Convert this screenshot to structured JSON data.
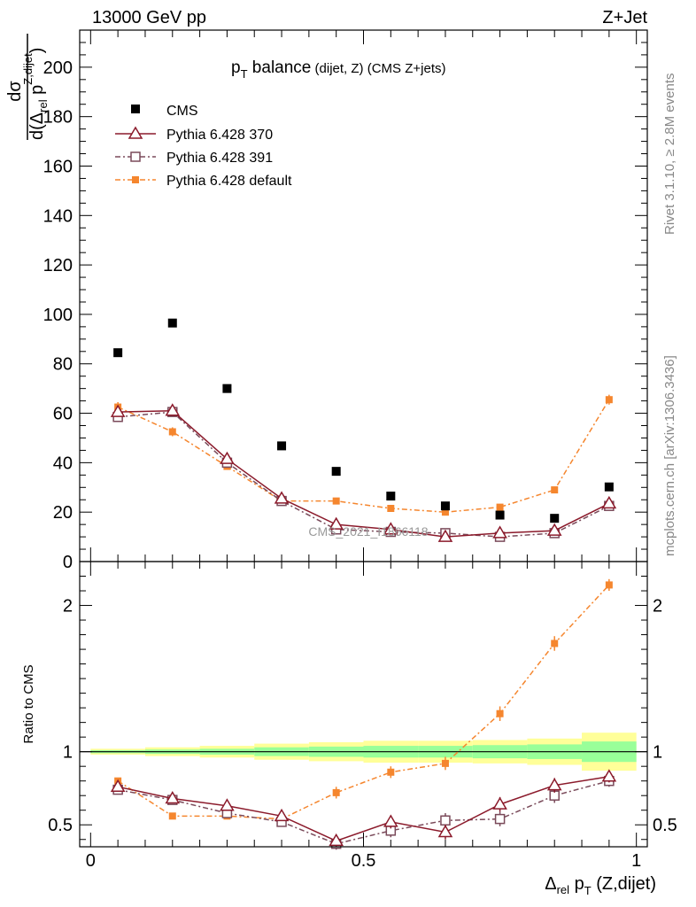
{
  "header": {
    "left": "13000 GeV pp",
    "right": "Z+Jet"
  },
  "side": {
    "rivet": "Rivet 3.1.10, ≥ 2.8M events",
    "mcplots": "mcplots.cern.ch [arXiv:1306.3436]"
  },
  "watermark": "CMS_2021_I1866118",
  "main_plot": {
    "title_main": "p",
    "title_sub": "T",
    "title_word": " balance",
    "title_small": " (dijet, Z)",
    "title_tail": " (CMS Z+jets)",
    "ylabel_num": "dσ",
    "ylabel_den_pre": "d(Δ",
    "ylabel_den_sub": "rel",
    "ylabel_den_p": " p",
    "ylabel_den_sup": "Z,dijet",
    "ylabel_den_close": ")"
  },
  "ratio_plot": {
    "ylabel": "Ratio to CMS"
  },
  "xaxis": {
    "delta": "Δ",
    "rel": "rel",
    "p": " p",
    "T": "T",
    "tail": " (Z,dijet)"
  },
  "legend": [
    {
      "label": "CMS"
    },
    {
      "label": "Pythia 6.428 370"
    },
    {
      "label": "Pythia 6.428 391"
    },
    {
      "label": "Pythia 6.428 default"
    }
  ],
  "colors": {
    "cms": "#000000",
    "p370": "#8b1a2b",
    "p391": "#7a4a5a",
    "pdef": "#f5862e",
    "band_inner": "#99ff99",
    "band_outer": "#ffff99"
  },
  "chart_data": [
    {
      "type": "scatter",
      "xlim": [
        -0.02,
        1.02
      ],
      "ylim": [
        0,
        215
      ],
      "xticks": [
        0,
        0.5,
        1
      ],
      "yticks": [
        0,
        20,
        40,
        60,
        80,
        100,
        120,
        140,
        160,
        180,
        200
      ],
      "ytick_labels": [
        "0",
        "20",
        "40",
        "60",
        "80",
        "100",
        "120",
        "140",
        "160",
        "180",
        "200"
      ],
      "x": [
        0.05,
        0.15,
        0.25,
        0.35,
        0.45,
        0.55,
        0.65,
        0.75,
        0.85,
        0.95
      ],
      "series": [
        {
          "name": "CMS",
          "values": [
            84.5,
            96.5,
            70.0,
            46.8,
            36.5,
            26.5,
            22.5,
            18.8,
            17.5,
            30.2
          ],
          "errors": [
            0,
            0,
            0,
            0,
            0,
            0,
            0,
            0,
            0,
            0
          ]
        },
        {
          "name": "Pythia 6.428 370",
          "values": [
            60.5,
            61.0,
            41.5,
            25.5,
            15.0,
            13.0,
            10.0,
            11.5,
            12.5,
            23.5
          ],
          "errors": [
            1.5,
            1.5,
            1.2,
            1.0,
            0.8,
            0.8,
            0.8,
            0.8,
            0.8,
            1.2
          ]
        },
        {
          "name": "Pythia 6.428 391",
          "values": [
            58.5,
            60.5,
            40.0,
            24.5,
            13.0,
            12.0,
            11.5,
            10.0,
            11.5,
            22.5
          ],
          "errors": [
            1.5,
            1.5,
            1.2,
            1.0,
            0.8,
            0.8,
            0.8,
            0.8,
            0.8,
            1.2
          ]
        },
        {
          "name": "Pythia 6.428 default",
          "values": [
            62.5,
            52.5,
            38.5,
            24.5,
            24.5,
            21.5,
            20.0,
            22.0,
            29.0,
            65.5
          ],
          "errors": [
            2.0,
            1.8,
            1.2,
            1.0,
            1.0,
            1.0,
            1.0,
            1.0,
            1.2,
            2.0
          ]
        }
      ]
    },
    {
      "type": "scatter",
      "ylabel": "Ratio to CMS",
      "xlim": [
        -0.02,
        1.02
      ],
      "ylim": [
        0.35,
        2.3
      ],
      "yticks": [
        0.5,
        1,
        2
      ],
      "ytick_labels": [
        "0.5",
        "1",
        "2"
      ],
      "xtick_labels": [
        "0",
        "0.5",
        "1"
      ],
      "x": [
        0.05,
        0.15,
        0.25,
        0.35,
        0.45,
        0.55,
        0.65,
        0.75,
        0.85,
        0.95
      ],
      "bands": {
        "edges": [
          0.0,
          0.1,
          0.2,
          0.3,
          0.4,
          0.5,
          0.6,
          0.7,
          0.8,
          0.9,
          1.0
        ],
        "inner_halfwidth": [
          0.01,
          0.015,
          0.02,
          0.03,
          0.035,
          0.04,
          0.04,
          0.045,
          0.05,
          0.07
        ],
        "outer_halfwidth": [
          0.02,
          0.03,
          0.04,
          0.055,
          0.065,
          0.075,
          0.075,
          0.08,
          0.09,
          0.13
        ]
      },
      "series": [
        {
          "name": "Pythia 6.428 370",
          "values": [
            0.76,
            0.68,
            0.63,
            0.56,
            0.39,
            0.52,
            0.45,
            0.64,
            0.77,
            0.83
          ],
          "errors": [
            0.02,
            0.02,
            0.025,
            0.03,
            0.04,
            0.045,
            0.05,
            0.05,
            0.05,
            0.04
          ]
        },
        {
          "name": "Pythia 6.428 391",
          "values": [
            0.74,
            0.67,
            0.58,
            0.52,
            0.37,
            0.46,
            0.53,
            0.54,
            0.7,
            0.8
          ],
          "errors": [
            0.02,
            0.02,
            0.025,
            0.03,
            0.04,
            0.045,
            0.05,
            0.05,
            0.05,
            0.04
          ]
        },
        {
          "name": "Pythia 6.428 default",
          "values": [
            0.8,
            0.56,
            0.56,
            0.54,
            0.72,
            0.86,
            0.92,
            1.26,
            1.74,
            2.14
          ],
          "errors": [
            0.02,
            0.02,
            0.02,
            0.025,
            0.04,
            0.04,
            0.045,
            0.05,
            0.05,
            0.04
          ]
        }
      ]
    }
  ]
}
